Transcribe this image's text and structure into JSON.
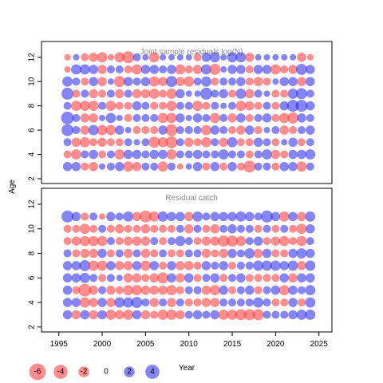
{
  "chart_data": {
    "type": "scatter",
    "encoding": "bubble",
    "xlabel": "Year",
    "ylabel": "Age",
    "xlim": [
      1993,
      2026.5
    ],
    "x_ticks": [
      1995,
      2000,
      2005,
      2010,
      2015,
      2020,
      2025
    ],
    "y_ticks": [
      2,
      4,
      6,
      8,
      10,
      12
    ],
    "colors": {
      "positive": "#2020ee",
      "negative": "#ff3030"
    },
    "legend": {
      "placement": "bottom",
      "values": [
        -6,
        -4,
        -2,
        0,
        2,
        4
      ],
      "labels": [
        "-6",
        "-4",
        "-2",
        "0",
        "2",
        "4"
      ]
    },
    "panels": [
      {
        "title": "Joint sample residuals log(N)",
        "ylim": [
          1.6,
          13.3
        ],
        "years": [
          1996,
          1997,
          1998,
          1999,
          2000,
          2001,
          2002,
          2003,
          2004,
          2005,
          2006,
          2007,
          2008,
          2009,
          2010,
          2011,
          2012,
          2013,
          2014,
          2015,
          2016,
          2017,
          2018,
          2019,
          2020,
          2021,
          2022,
          2023,
          2024
        ],
        "ages": [
          3,
          4,
          5,
          6,
          7,
          8,
          9,
          10,
          11,
          12
        ],
        "residuals": [
          [
            1.5,
            -1.0,
            1.0,
            3.0,
            3.5,
            1.0,
            3.0,
            2.0,
            -0.5,
            -0.5
          ],
          [
            1.5,
            -2.0,
            -1.5,
            1.0,
            1.0,
            -2.0,
            -1.0,
            1.0,
            2.0,
            0.5
          ],
          [
            -1.0,
            1.0,
            -2.0,
            -1.5,
            -1.5,
            -2.0,
            1.0,
            -1.0,
            2.0,
            -1.0
          ],
          [
            -1.5,
            1.5,
            -1.0,
            2.0,
            -1.5,
            -2.0,
            -1.5,
            1.5,
            1.5,
            -1.5
          ],
          [
            0.5,
            -1.0,
            -1.5,
            -2.0,
            0.5,
            1.0,
            -1.0,
            -1.5,
            -1.5,
            -2.0
          ],
          [
            1.0,
            1.0,
            -1.0,
            -2.0,
            2.0,
            -2.0,
            1.0,
            0.5,
            1.0,
            -0.5
          ],
          [
            1.5,
            -2.0,
            -1.0,
            1.5,
            0.5,
            -1.0,
            -1.5,
            -2.5,
            1.0,
            -2.0
          ],
          [
            -2.0,
            1.5,
            1.0,
            0.5,
            -1.0,
            -1.0,
            1.0,
            1.5,
            -1.0,
            -3.0
          ],
          [
            -1.5,
            1.5,
            0.5,
            -1.0,
            1.0,
            1.5,
            -1.5,
            1.0,
            -2.0,
            1.0
          ],
          [
            1.0,
            1.0,
            1.0,
            -1.0,
            1.0,
            1.0,
            -1.5,
            1.5,
            1.5,
            0.5
          ],
          [
            1.0,
            1.5,
            -2.5,
            -1.0,
            1.0,
            -1.0,
            -2.0,
            -2.0,
            1.5,
            -2.0
          ],
          [
            -2.0,
            1.5,
            -2.0,
            1.5,
            -2.0,
            -1.0,
            -1.0,
            -1.5,
            1.0,
            0.5
          ],
          [
            1.0,
            -2.0,
            -3.0,
            -3.0,
            -2.0,
            -2.0,
            -2.0,
            2.5,
            1.5,
            0.5
          ],
          [
            -0.5,
            1.0,
            1.0,
            1.0,
            1.5,
            1.0,
            1.5,
            -1.5,
            -2.0,
            0.5
          ],
          [
            0.5,
            1.0,
            -1.5,
            1.0,
            0.5,
            1.0,
            0.5,
            -2.0,
            -1.0,
            0.5
          ],
          [
            1.5,
            1.5,
            -1.0,
            1.0,
            1.5,
            -2.0,
            0.5,
            1.0,
            -1.5,
            -1.0
          ],
          [
            -1.0,
            1.0,
            -2.0,
            -2.0,
            1.0,
            -1.0,
            3.0,
            2.0,
            2.0,
            1.5
          ],
          [
            1.5,
            1.0,
            1.0,
            1.5,
            -2.0,
            1.0,
            1.0,
            -1.0,
            -2.5,
            2.0
          ],
          [
            -1.0,
            2.0,
            -1.5,
            1.0,
            1.0,
            0.5,
            1.5,
            1.0,
            0.5,
            0.5
          ],
          [
            1.5,
            1.0,
            2.0,
            -1.0,
            -1.5,
            1.0,
            -1.0,
            1.0,
            1.5,
            2.0
          ],
          [
            -1.0,
            1.0,
            -1.0,
            -1.5,
            1.5,
            -2.0,
            2.0,
            1.5,
            1.5,
            2.0
          ],
          [
            -3.0,
            -1.0,
            -1.0,
            1.5,
            -1.0,
            -1.5,
            -1.5,
            -1.0,
            -1.0,
            -1.5
          ],
          [
            1.0,
            1.0,
            1.5,
            -1.0,
            1.0,
            -1.0,
            1.0,
            -1.5,
            1.5,
            0.5
          ],
          [
            1.0,
            2.0,
            1.0,
            0.5,
            1.5,
            1.0,
            0.5,
            -1.0,
            1.5,
            0.5
          ],
          [
            -1.0,
            -1.5,
            -1.0,
            1.0,
            -1.0,
            -1.0,
            -1.0,
            0.5,
            -2.0,
            0.5
          ],
          [
            1.5,
            -1.0,
            0.5,
            -1.5,
            -2.0,
            1.5,
            -1.0,
            1.5,
            -1.0,
            0.5
          ],
          [
            1.5,
            1.5,
            1.5,
            -1.0,
            -2.5,
            3.0,
            2.0,
            1.5,
            -1.5,
            0.5
          ],
          [
            -2.0,
            1.5,
            -1.0,
            1.0,
            1.5,
            3.0,
            2.5,
            -1.5,
            2.5,
            -1.5
          ],
          [
            1.0,
            2.0,
            1.0,
            1.5,
            1.0,
            1.5,
            1.0,
            1.5,
            1.5,
            -0.5
          ]
        ]
      },
      {
        "title": "Residual catch",
        "ylim": [
          1.6,
          13.3
        ],
        "years": [
          1996,
          1997,
          1998,
          1999,
          2000,
          2001,
          2002,
          2003,
          2004,
          2005,
          2006,
          2007,
          2008,
          2009,
          2010,
          2011,
          2012,
          2013,
          2014,
          2015,
          2016,
          2017,
          2018,
          2019,
          2020,
          2021,
          2022,
          2023,
          2024
        ],
        "ages": [
          3,
          4,
          5,
          6,
          7,
          8,
          9,
          10,
          11
        ],
        "residuals": [
          [
            1.5,
            1.5,
            1.5,
            1.5,
            1.5,
            1.0,
            -1.0,
            -1.0,
            3.0
          ],
          [
            -1.5,
            1.5,
            -1.0,
            1.5,
            1.5,
            -1.0,
            -1.5,
            -1.0,
            1.5
          ],
          [
            1.5,
            -2.0,
            -3.5,
            2.0,
            2.5,
            -1.5,
            -2.0,
            -2.0,
            -1.0
          ],
          [
            -1.5,
            -1.5,
            -1.5,
            1.0,
            -2.0,
            -1.5,
            -2.0,
            -1.0,
            1.0
          ],
          [
            1.5,
            1.5,
            1.0,
            -1.0,
            -2.0,
            1.5,
            -2.0,
            1.0,
            -0.5
          ],
          [
            -2.0,
            -1.5,
            -1.5,
            1.0,
            1.5,
            -1.0,
            1.0,
            -1.0,
            1.5
          ],
          [
            -1.5,
            2.0,
            -1.0,
            0.5,
            -1.5,
            1.0,
            -1.0,
            -1.5,
            1.0
          ],
          [
            -2.0,
            2.0,
            -2.0,
            -1.5,
            -1.5,
            -1.5,
            -1.5,
            -1.0,
            2.0
          ],
          [
            1.5,
            2.5,
            -2.0,
            -1.5,
            1.5,
            1.0,
            -1.5,
            -1.0,
            -1.5
          ],
          [
            -1.5,
            1.0,
            -1.5,
            -1.0,
            -2.0,
            -1.5,
            -1.5,
            -1.5,
            -3.0
          ],
          [
            -1.0,
            -1.5,
            -1.5,
            -1.5,
            1.5,
            -1.0,
            1.0,
            -1.0,
            -2.0
          ],
          [
            -2.0,
            1.0,
            -1.5,
            -2.5,
            -1.0,
            1.0,
            -1.0,
            -1.0,
            2.0
          ],
          [
            -2.0,
            -1.5,
            -2.0,
            1.5,
            1.5,
            -1.0,
            1.0,
            -1.0,
            1.5
          ],
          [
            -1.5,
            1.0,
            -1.0,
            -1.5,
            -1.5,
            -1.0,
            2.0,
            1.0,
            1.5
          ],
          [
            1.0,
            -1.0,
            1.0,
            1.5,
            -1.5,
            1.0,
            1.0,
            -1.5,
            -1.5
          ],
          [
            1.5,
            -1.0,
            1.0,
            -1.0,
            -1.0,
            1.0,
            -1.0,
            1.0,
            2.0
          ],
          [
            1.0,
            -1.5,
            -1.5,
            1.0,
            1.5,
            -1.5,
            -1.5,
            -1.0,
            1.0
          ],
          [
            1.5,
            -1.5,
            -2.0,
            1.5,
            1.0,
            -1.0,
            -1.5,
            -1.5,
            1.5
          ],
          [
            -2.0,
            1.0,
            1.5,
            -1.0,
            1.5,
            -1.5,
            -2.5,
            1.0,
            1.5
          ],
          [
            -2.0,
            1.0,
            -1.0,
            1.0,
            -1.0,
            1.5,
            -2.5,
            1.5,
            1.5
          ],
          [
            -2.5,
            1.0,
            1.0,
            1.5,
            1.0,
            1.0,
            -2.0,
            1.0,
            2.0
          ],
          [
            -2.5,
            1.0,
            1.5,
            -1.0,
            1.0,
            2.0,
            1.0,
            1.0,
            1.5
          ],
          [
            -2.5,
            2.0,
            -1.0,
            -1.0,
            2.0,
            -1.5,
            1.5,
            -1.0,
            1.0
          ],
          [
            1.0,
            1.0,
            1.0,
            -1.0,
            2.0,
            1.5,
            -1.0,
            1.0,
            3.0
          ],
          [
            1.0,
            -1.0,
            1.5,
            -1.0,
            2.0,
            -1.0,
            -1.5,
            -1.0,
            1.5
          ],
          [
            1.0,
            -1.0,
            -2.0,
            1.5,
            1.5,
            -1.0,
            -2.0,
            1.0,
            -2.0
          ],
          [
            1.5,
            1.5,
            1.5,
            -1.5,
            2.0,
            1.5,
            -1.0,
            -1.0,
            1.5
          ],
          [
            2.0,
            -1.0,
            1.0,
            1.5,
            -1.5,
            2.0,
            -2.0,
            -2.0,
            -1.5
          ],
          [
            2.0,
            2.0,
            2.0,
            1.5,
            2.0,
            1.5,
            1.0,
            1.5,
            2.0
          ]
        ]
      }
    ]
  }
}
